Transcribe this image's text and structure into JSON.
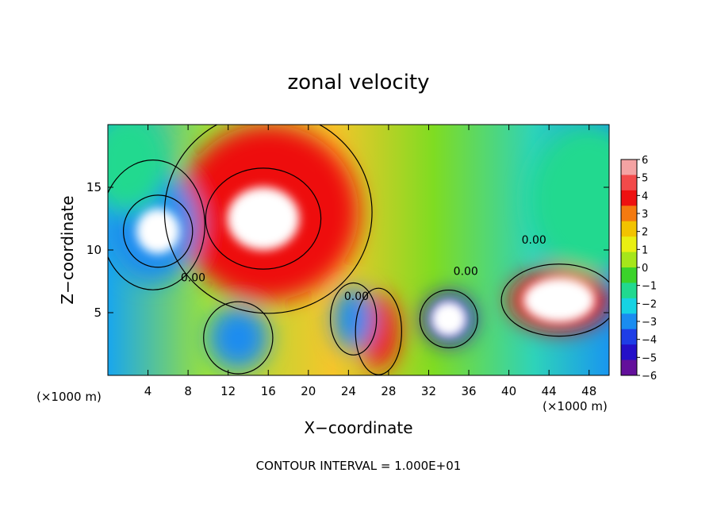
{
  "chart_data": {
    "type": "heatmap",
    "title": "zonal velocity",
    "xlabel": "X−coordinate",
    "ylabel": "Z−coordinate",
    "x_unit_left": "(×1000 m)",
    "x_unit_right": "(×1000 m)",
    "footer": "CONTOUR INTERVAL = 1.000E+01",
    "xlim": [
      0,
      50
    ],
    "ylim": [
      0,
      20
    ],
    "x_ticks": [
      4,
      8,
      12,
      16,
      20,
      24,
      28,
      32,
      36,
      40,
      44,
      48
    ],
    "y_ticks": [
      5,
      10,
      15
    ],
    "contour_label": "0.00",
    "colorbar": {
      "levels": [
        6,
        5,
        4,
        3,
        2,
        1,
        0,
        -1,
        -2,
        -3,
        -4,
        -5,
        -6
      ],
      "labels": [
        "6",
        "5",
        "4",
        "3",
        "2",
        "1",
        "0",
        "−1",
        "−2",
        "−3",
        "−4",
        "−5",
        "−6"
      ],
      "colors": [
        "#f4a3a3",
        "#f24a4a",
        "#ee1111",
        "#f47a10",
        "#f2c300",
        "#e9ef12",
        "#a6e61a",
        "#3bd32a",
        "#21d98f",
        "#16d3e3",
        "#1a8cf0",
        "#1e3ee6",
        "#2410c8",
        "#63109b"
      ]
    },
    "regions": [
      {
        "kind": "strong_positive",
        "x": 15.5,
        "y": 12.5,
        "rx": 5,
        "ry": 3.5,
        "value": 7
      },
      {
        "kind": "strong_positive",
        "x": 45,
        "y": 6,
        "rx": 5,
        "ry": 2.5,
        "value": 7
      },
      {
        "kind": "positive",
        "x": 16,
        "y": 13,
        "rx": 9,
        "ry": 7,
        "value": 4
      },
      {
        "kind": "positive",
        "x": 27,
        "y": 3.5,
        "rx": 2,
        "ry": 3,
        "value": 4
      },
      {
        "kind": "strong_negative",
        "x": 5,
        "y": 11.5,
        "rx": 3,
        "ry": 2.5,
        "value": -7
      },
      {
        "kind": "strong_negative",
        "x": 34,
        "y": 4.5,
        "rx": 2.5,
        "ry": 2,
        "value": -7
      },
      {
        "kind": "negative",
        "x": 4.5,
        "y": 12,
        "rx": 4.5,
        "ry": 4.5,
        "value": -4
      },
      {
        "kind": "negative",
        "x": 13,
        "y": 3,
        "rx": 3,
        "ry": 2.5,
        "value": -4
      },
      {
        "kind": "negative",
        "x": 24.5,
        "y": 4.5,
        "rx": 2,
        "ry": 2.5,
        "value": -4
      },
      {
        "kind": "cyan",
        "x": 48,
        "y": 14,
        "rx": 6,
        "ry": 6,
        "value": -2
      },
      {
        "kind": "cyan",
        "x": 2,
        "y": 17,
        "rx": 4,
        "ry": 4,
        "value": -2
      }
    ],
    "labels_on_map": [
      {
        "x": 8.5,
        "y": 7.5,
        "text": "0.00"
      },
      {
        "x": 24.8,
        "y": 6.0,
        "text": "0.00"
      },
      {
        "x": 35.7,
        "y": 8.0,
        "text": "0.00"
      },
      {
        "x": 42.5,
        "y": 10.5,
        "text": "0.00"
      }
    ]
  }
}
